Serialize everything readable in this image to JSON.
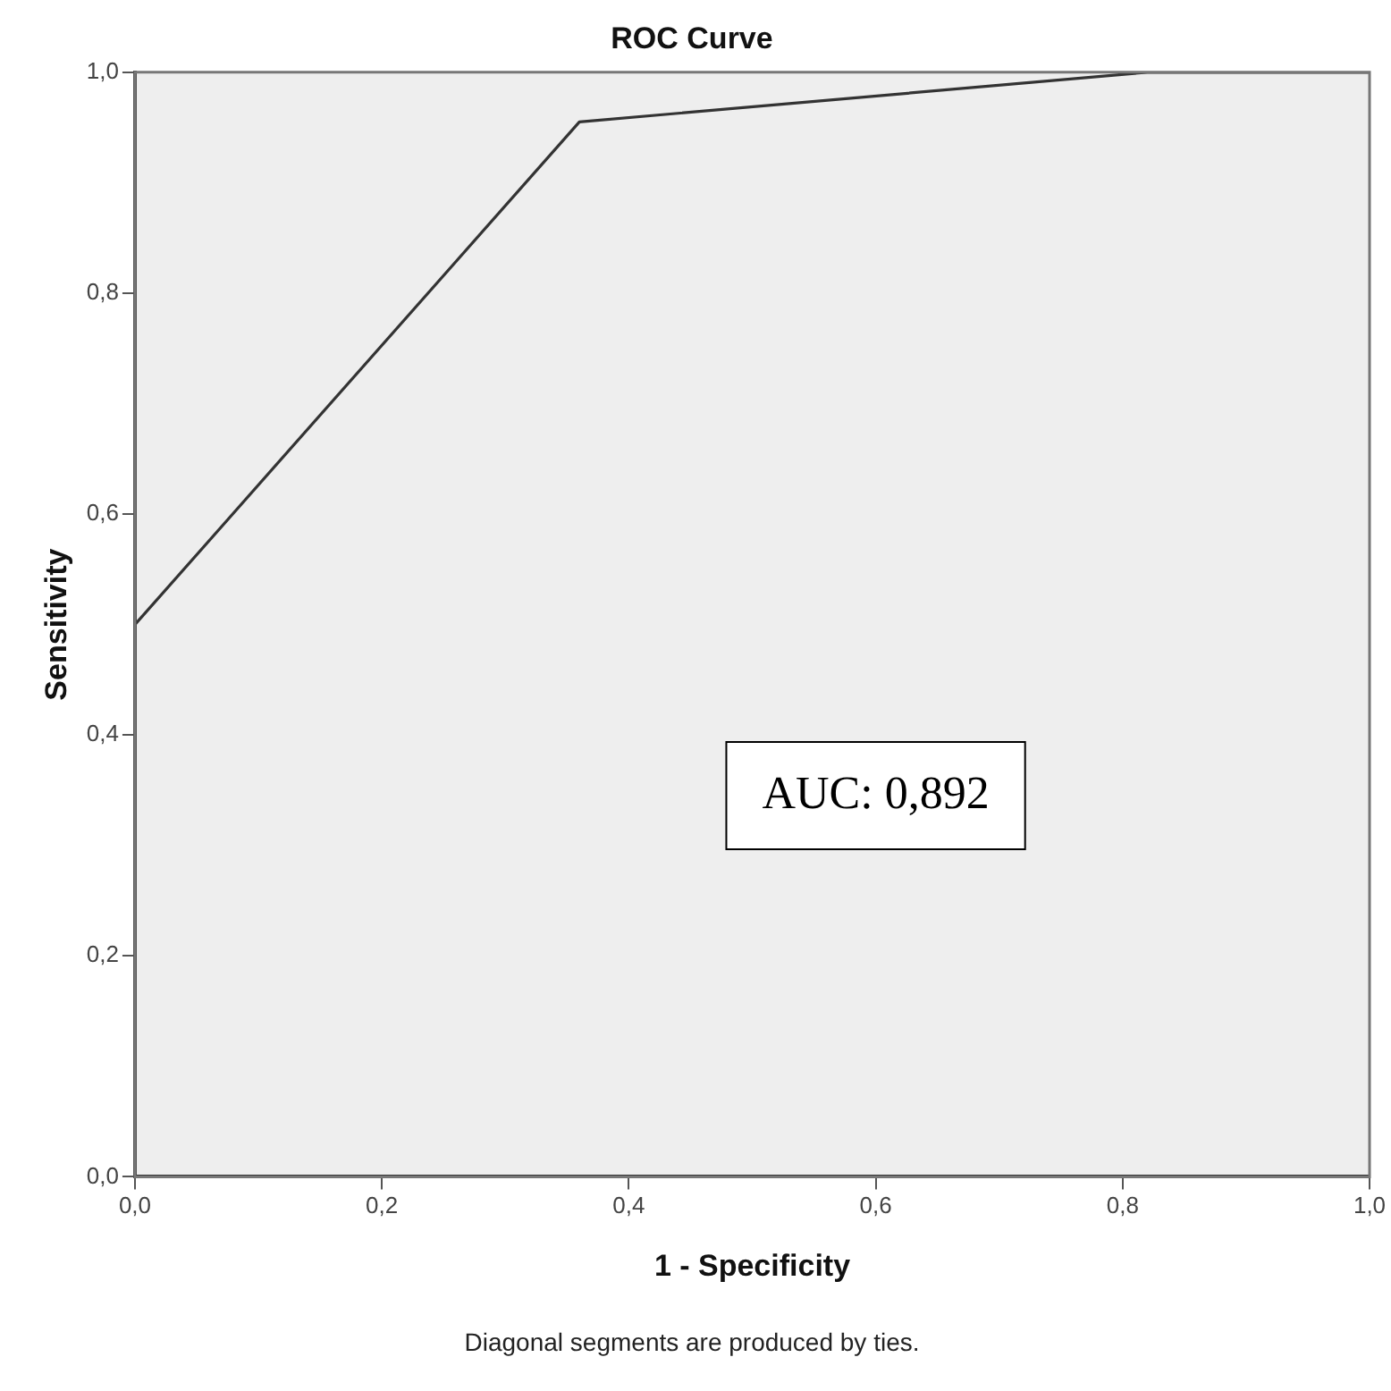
{
  "chart_data": {
    "type": "line",
    "title": "ROC Curve",
    "xlabel": "1 - Specificity",
    "ylabel": "Sensitivity",
    "x": [
      0,
      0,
      0.36,
      0.82,
      1
    ],
    "series": [
      {
        "color": "#333333",
        "values": [
          0,
          0.5,
          0.955,
          1,
          1
        ]
      }
    ],
    "xlim": [
      0,
      1
    ],
    "ylim": [
      0,
      1
    ],
    "xticks": [
      {
        "value": 0,
        "label": "0,0"
      },
      {
        "value": 0.2,
        "label": "0,2"
      },
      {
        "value": 0.4,
        "label": "0,4"
      },
      {
        "value": 0.6,
        "label": "0,6"
      },
      {
        "value": 0.8,
        "label": "0,8"
      },
      {
        "value": 1,
        "label": "1,0"
      }
    ],
    "yticks": [
      {
        "value": 0,
        "label": "0,0"
      },
      {
        "value": 0.2,
        "label": "0,2"
      },
      {
        "value": 0.4,
        "label": "0,4"
      },
      {
        "value": 0.6,
        "label": "0,6"
      },
      {
        "value": 0.8,
        "label": "0,8"
      },
      {
        "value": 1,
        "label": "1,0"
      }
    ],
    "annotations": [
      "AUC: 0,892",
      "Diagonal segments are produced by ties."
    ],
    "grid": false,
    "legend": false,
    "marker": "none",
    "line_style": "solid"
  }
}
